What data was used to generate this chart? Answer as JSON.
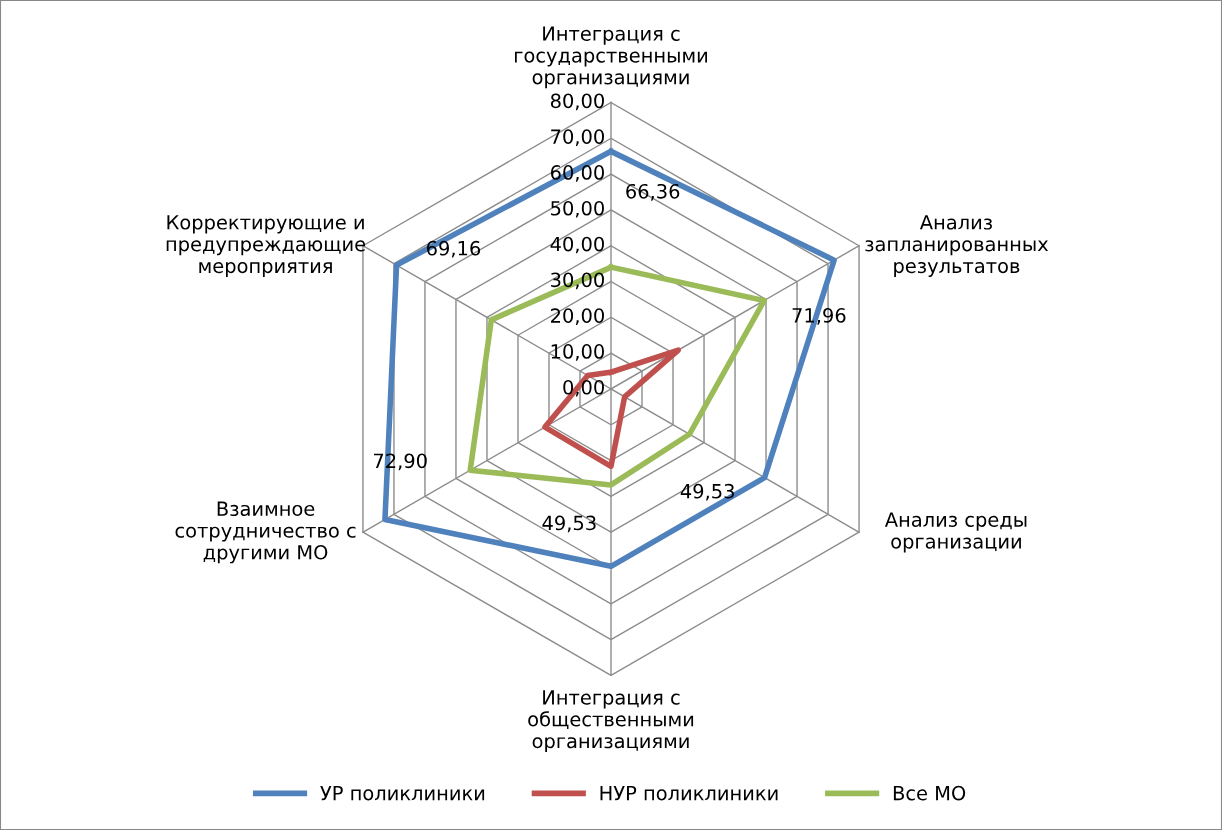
{
  "chart_data": {
    "type": "radar",
    "categories": [
      "Интеграция с\nгосударственными\nорганизациями",
      "Анализ\nзапланированных\nрезультатов",
      "Анализ среды\nорганизации",
      "Интеграция с\nобщественными\nорганизациями",
      "Взаимное\nсотрудничество с\nдругими МО",
      "Корректирующие и\nпредупреждающие\nмероприятия"
    ],
    "series": [
      {
        "name": "УР поликлиники",
        "color": "#4f81bd",
        "values": [
          66.36,
          71.96,
          49.53,
          49.53,
          72.9,
          69.16
        ],
        "value_labels": [
          "66,36",
          "71,96",
          "49,53",
          "49,53",
          "72,90",
          "69,16"
        ]
      },
      {
        "name": "НУР поликлиники",
        "color": "#c0504d",
        "values": [
          4.7,
          21.7,
          4.4,
          21.6,
          21.3,
          7.5
        ]
      },
      {
        "name": "Все МО",
        "color": "#9bbb59",
        "values": [
          34.0,
          49.4,
          25.3,
          26.8,
          45.4,
          38.6
        ]
      }
    ],
    "ylim": [
      0,
      80
    ],
    "yticks": [
      {
        "value": 0,
        "label": "0,00"
      },
      {
        "value": 10,
        "label": "10,00"
      },
      {
        "value": 20,
        "label": "20,00"
      },
      {
        "value": 30,
        "label": "30,00"
      },
      {
        "value": 40,
        "label": "40,00"
      },
      {
        "value": 50,
        "label": "50,00"
      },
      {
        "value": 60,
        "label": "60,00"
      },
      {
        "value": 70,
        "label": "70,00"
      },
      {
        "value": 80,
        "label": "80,00"
      }
    ],
    "grid": true,
    "legend": "bottom"
  }
}
